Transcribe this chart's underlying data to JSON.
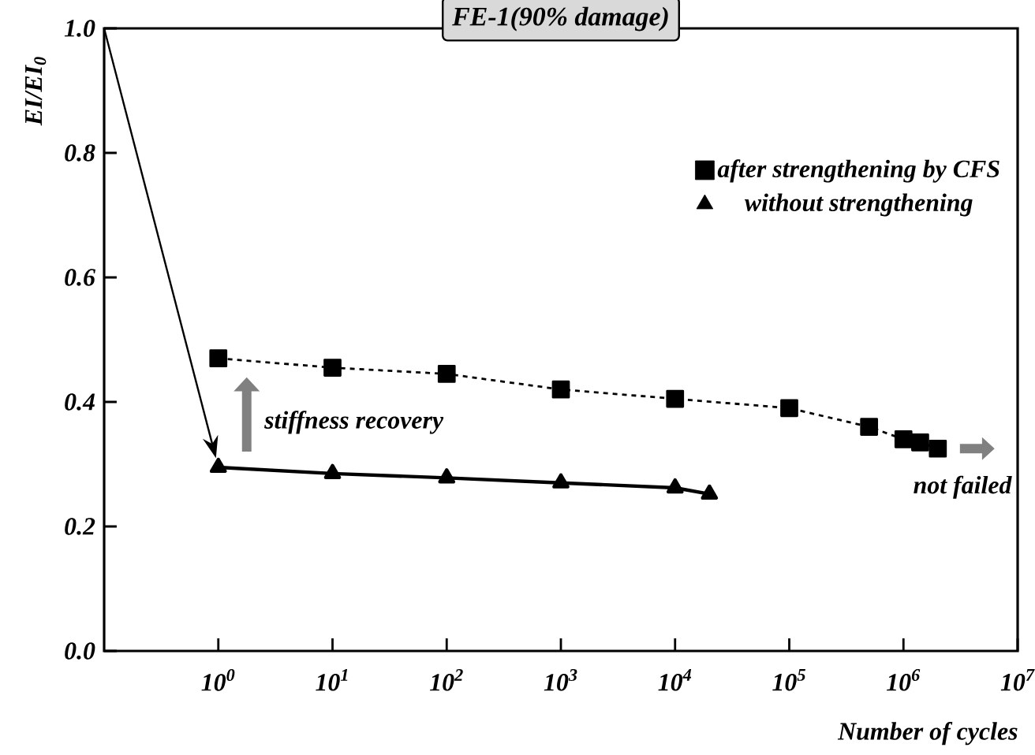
{
  "chart_data": {
    "type": "line",
    "title": "FE-1(90% damage)",
    "xlabel": "Number of cycles",
    "ylabel": "EI/EI$_{0}$",
    "log": "x",
    "xlim": [
      0.1,
      10000000
    ],
    "ylim": [
      0,
      1
    ],
    "xticks": [
      {
        "value": 1,
        "label": "10$^{0}$"
      },
      {
        "value": 10,
        "label": "10$^{1}$"
      },
      {
        "value": 100,
        "label": "10$^{2}$"
      },
      {
        "value": 1000,
        "label": "10$^{3}$"
      },
      {
        "value": 10000,
        "label": "10$^{4}$"
      },
      {
        "value": 100000,
        "label": "10$^{5}$"
      },
      {
        "value": 1000000,
        "label": "10$^{6}$"
      },
      {
        "value": 10000000,
        "label": "10$^{7}$"
      }
    ],
    "yticks": [
      {
        "value": 0,
        "label": "0.0"
      },
      {
        "value": 0.2,
        "label": "0.2"
      },
      {
        "value": 0.4,
        "label": "0.4"
      },
      {
        "value": 0.6,
        "label": "0.6"
      },
      {
        "value": 0.8,
        "label": "0.8"
      },
      {
        "value": 1,
        "label": "1.0"
      }
    ],
    "legend": "top right",
    "grid": false,
    "series": [
      {
        "name": "after strengthening by CFS",
        "color": "#000000",
        "marker": "square",
        "line_style": "dashed",
        "x": [
          1,
          10,
          100,
          1000,
          10000,
          100000,
          500000,
          1000000,
          1400000,
          2000000
        ],
        "values": [
          0.47,
          0.455,
          0.445,
          0.42,
          0.405,
          0.39,
          0.36,
          0.34,
          0.335,
          0.325
        ]
      },
      {
        "name": "without strengthening",
        "color": "#000000",
        "marker": "triangle",
        "line_style": "solid",
        "x": [
          1,
          10,
          100,
          1000,
          10000,
          20000
        ],
        "values": [
          0.295,
          0.285,
          0.278,
          0.27,
          0.262,
          0.252
        ]
      }
    ],
    "annotations": [
      "stiffness recovery",
      "not failed"
    ]
  }
}
